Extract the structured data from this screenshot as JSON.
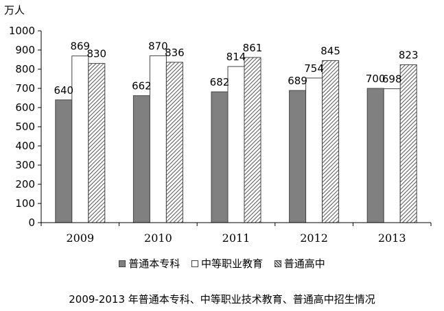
{
  "chart_data": {
    "type": "bar",
    "unit_label": "万人",
    "categories": [
      "2009",
      "2010",
      "2011",
      "2012",
      "2013"
    ],
    "series": [
      {
        "name": "普通本专科",
        "values": [
          640,
          662,
          682,
          689,
          700
        ],
        "color": "#808080",
        "pattern": "solid"
      },
      {
        "name": "中等职业教育",
        "values": [
          869,
          870,
          814,
          754,
          698
        ],
        "color": "#ffffff",
        "pattern": "solid"
      },
      {
        "name": "普通高中",
        "values": [
          830,
          836,
          861,
          845,
          823
        ],
        "color": "#c0c0c0",
        "pattern": "diagonal-hatch"
      }
    ],
    "yticks": [
      "0",
      "100",
      "200",
      "300",
      "400",
      "500",
      "600",
      "700",
      "800",
      "900",
      "1000"
    ],
    "ylim": [
      0,
      1000
    ],
    "legend_position": "bottom",
    "caption": "2009-2013 年普通本专科、中等职业技术教育、普通高中招生情况"
  }
}
